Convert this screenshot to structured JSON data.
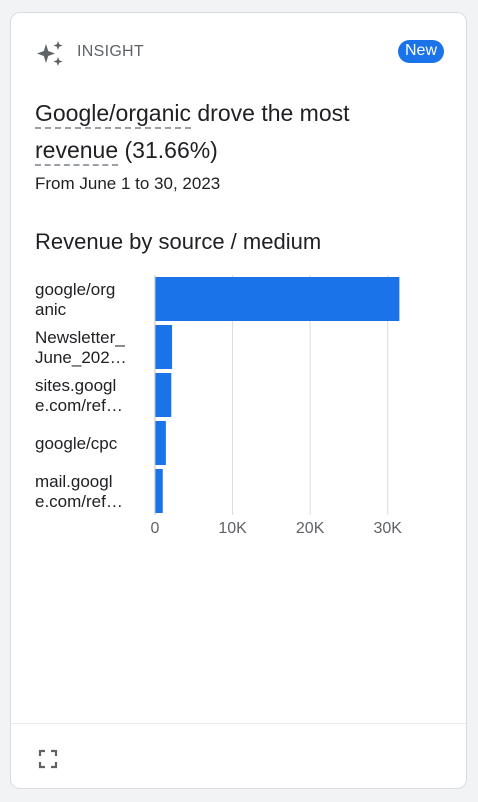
{
  "card": {
    "label": "INSIGHT",
    "badge": "New",
    "headline_link1": "Google/organic",
    "headline_mid": " drove the most ",
    "headline_link2": "revenue",
    "headline_pct": " (31.66%)",
    "date_range": "From June 1 to 30, 2023",
    "chart_title": "Revenue by source / medium",
    "icons": [
      "sparkle-icon",
      "expand-icon"
    ],
    "colors": {
      "accent": "#1a73e8",
      "bar": "#1a73e8"
    }
  },
  "chart_data": {
    "type": "bar",
    "orientation": "horizontal",
    "title": "Revenue by source / medium",
    "categories": [
      [
        "google/org",
        "anic"
      ],
      [
        "Newsletter_",
        "June_202…"
      ],
      [
        "sites.googl",
        "e.com/ref…"
      ],
      [
        "google/cpc"
      ],
      [
        "mail.googl",
        "e.com/ref…"
      ]
    ],
    "values": [
      31500,
      2200,
      2100,
      1400,
      1000
    ],
    "xlim": [
      0,
      33000
    ],
    "xticks": [
      0,
      10000,
      20000,
      30000
    ],
    "xtick_labels": [
      "0",
      "10K",
      "20K",
      "30K"
    ],
    "grid": true,
    "legend": "none"
  }
}
